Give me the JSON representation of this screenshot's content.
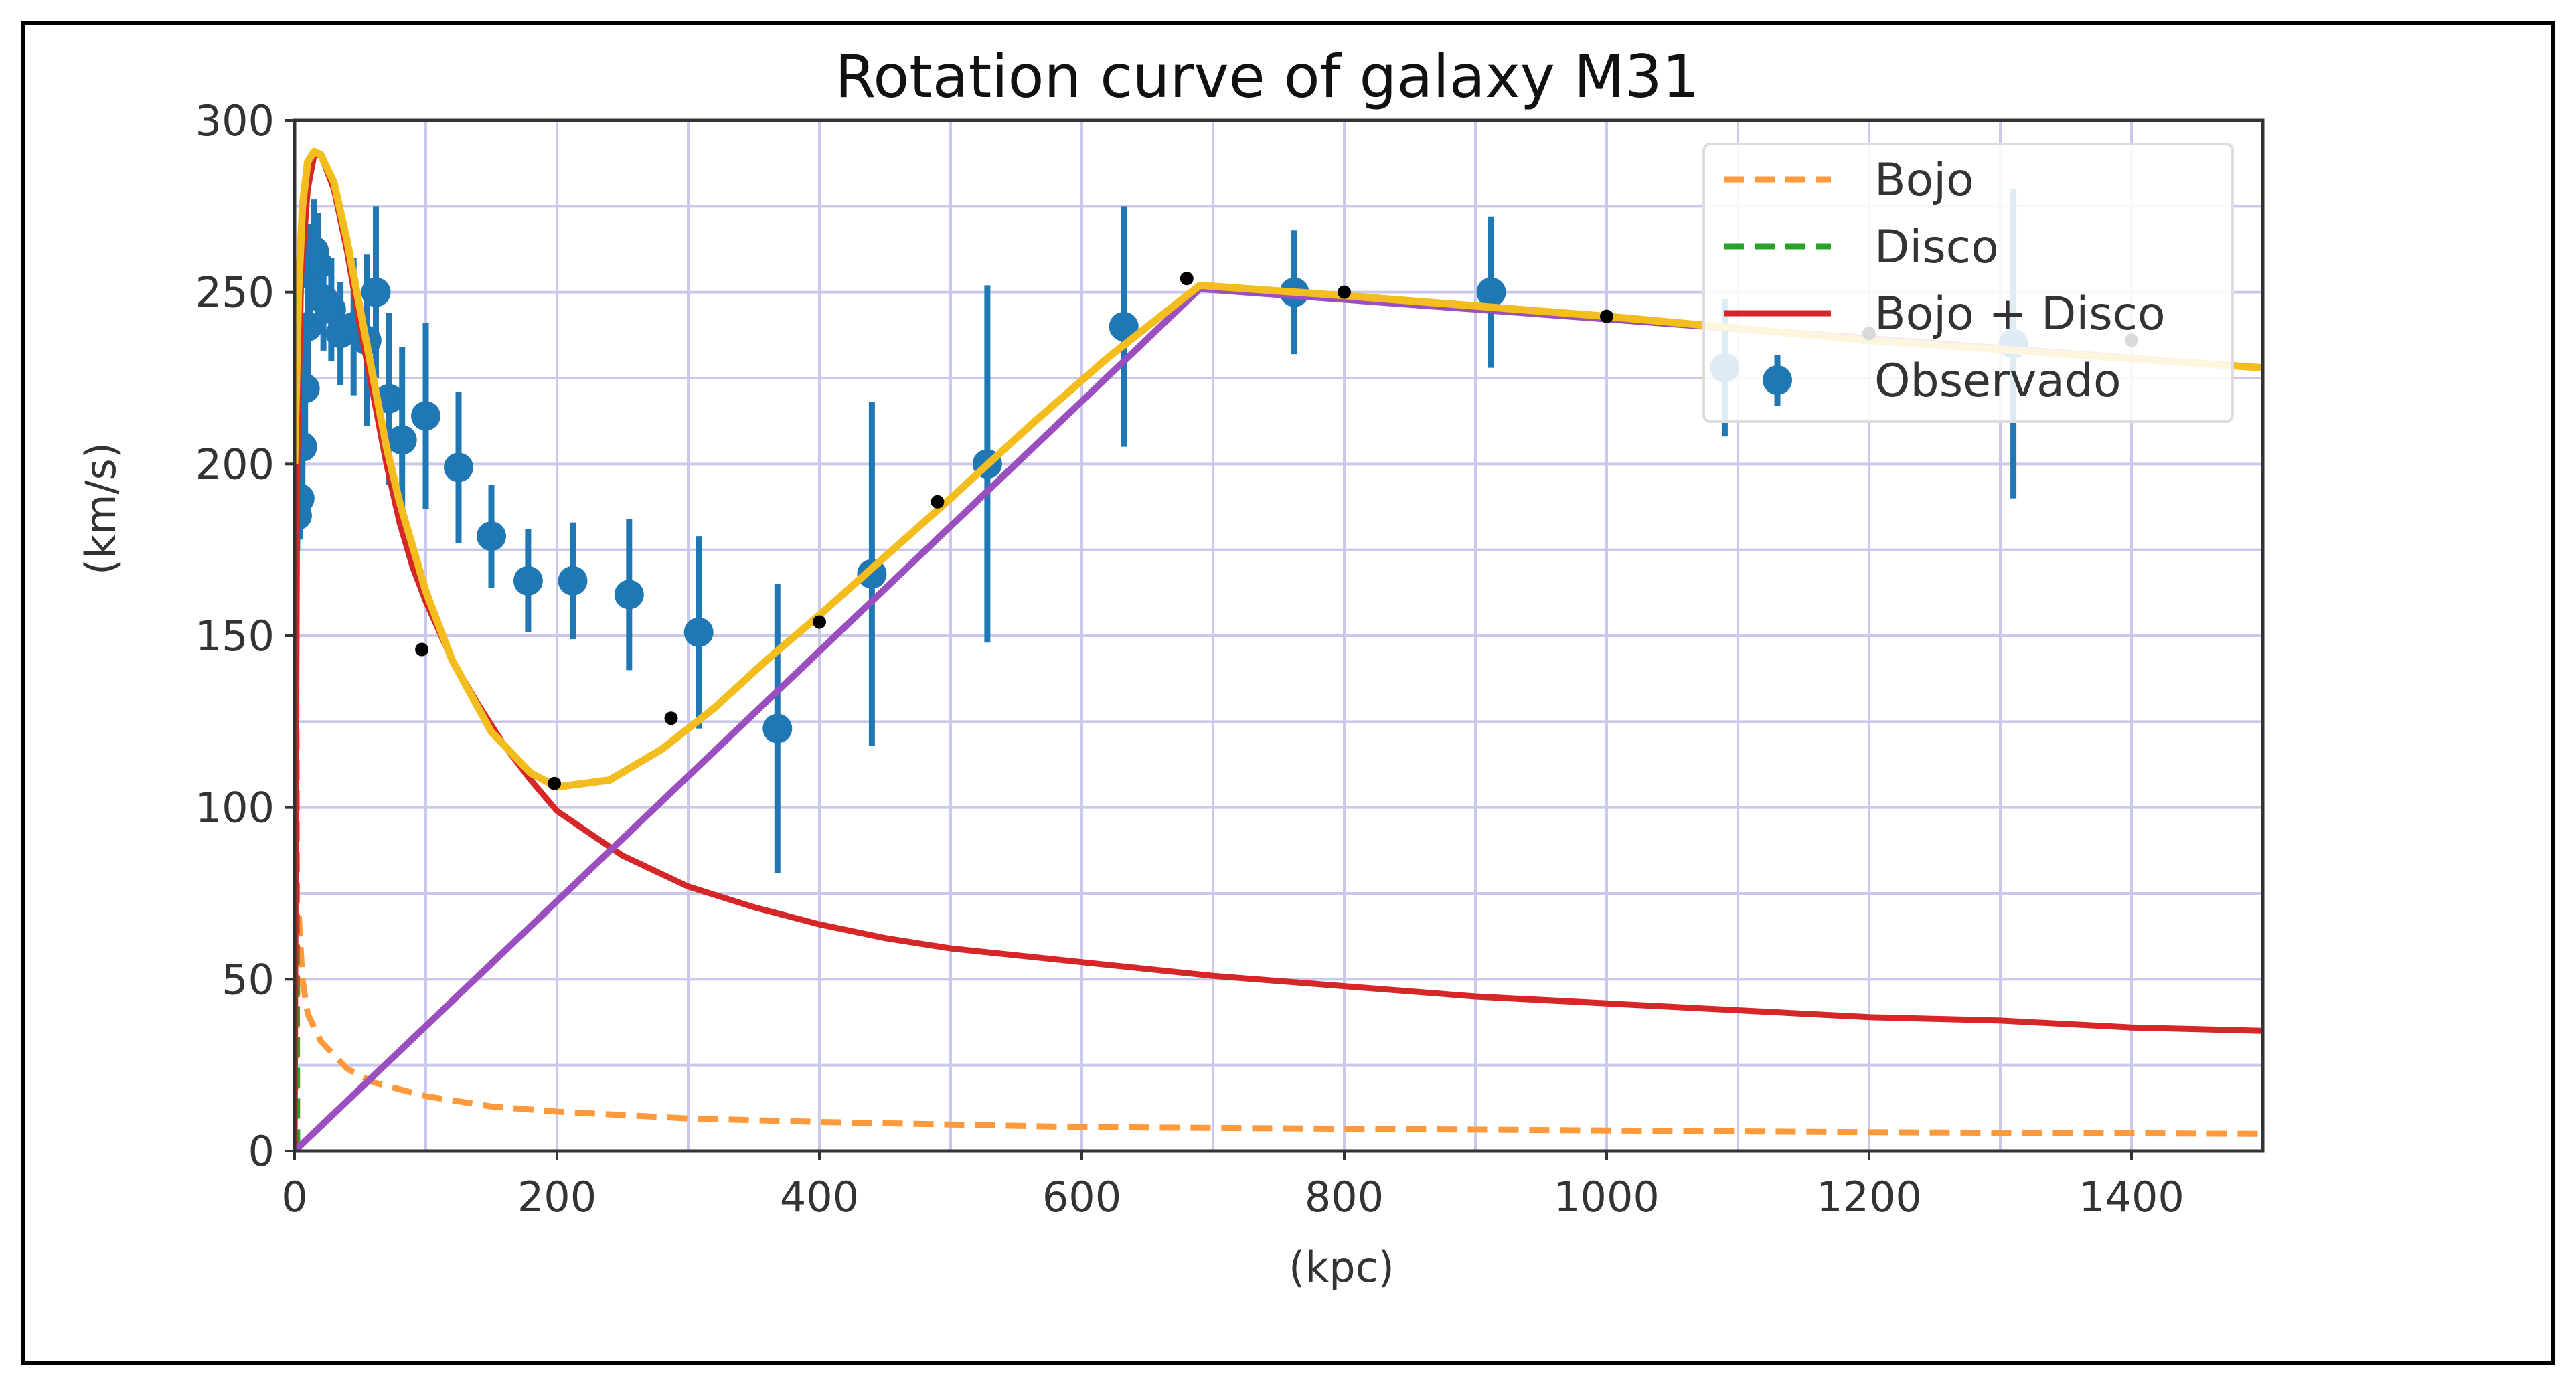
{
  "chart_data": {
    "type": "line",
    "title": "Rotation curve of galaxy M31",
    "xlabel": "(kpc)",
    "ylabel": "(km/s)",
    "xlim": [
      0,
      1500
    ],
    "ylim": [
      0,
      300
    ],
    "xticks": [
      0,
      200,
      400,
      600,
      800,
      1000,
      1200,
      1400
    ],
    "yticks": [
      0,
      50,
      100,
      150,
      200,
      250,
      300
    ],
    "grid": true,
    "legend_position": "top-right",
    "series": [
      {
        "name": "Bojo",
        "style": "dashed",
        "color": "#ff9a3c",
        "x": [
          0,
          3,
          6,
          10,
          20,
          40,
          60,
          100,
          150,
          200,
          300,
          400,
          600,
          800,
          1000,
          1200,
          1500
        ],
        "y": [
          0,
          70,
          50,
          40,
          32,
          24,
          20,
          16,
          13,
          11.5,
          9.5,
          8.5,
          7,
          6.5,
          6,
          5.5,
          5
        ]
      },
      {
        "name": "Disco",
        "style": "dashed",
        "color": "#2ca02c",
        "x": [
          0,
          0.5,
          1,
          1.5,
          2
        ],
        "y": [
          0,
          100,
          160,
          120,
          0
        ]
      },
      {
        "name": "Bojo + Disco",
        "style": "solid",
        "color": "#d62728",
        "x": [
          0,
          2,
          5,
          10,
          15,
          20,
          30,
          40,
          50,
          60,
          70,
          80,
          90,
          100,
          120,
          140,
          160,
          180,
          200,
          250,
          300,
          350,
          400,
          450,
          500,
          600,
          700,
          800,
          900,
          1000,
          1100,
          1200,
          1300,
          1400,
          1500
        ],
        "y": [
          0,
          200,
          255,
          280,
          290,
          290,
          280,
          262,
          240,
          220,
          200,
          183,
          170,
          160,
          143,
          130,
          118,
          108,
          99,
          86,
          77,
          71,
          66,
          62,
          59,
          55,
          51,
          48,
          45,
          43,
          41,
          39,
          38,
          36,
          35
        ]
      },
      {
        "name": "Observado",
        "style": "errorbar",
        "color": "#1f77b4",
        "x": [
          2,
          4,
          6,
          8,
          10,
          12,
          15,
          18,
          22,
          28,
          35,
          45,
          55,
          62,
          72,
          82,
          100,
          125,
          150,
          178,
          212,
          255,
          308,
          368,
          440,
          528,
          632,
          762,
          912,
          1090,
          1310
        ],
        "y": [
          185,
          190,
          205,
          222,
          240,
          255,
          262,
          258,
          248,
          245,
          238,
          240,
          236,
          250,
          219,
          207,
          214,
          199,
          179,
          166,
          166,
          162,
          151,
          123,
          168,
          200,
          240,
          250,
          250,
          228,
          235
        ],
        "yerr": [
          10,
          12,
          15,
          15,
          15,
          15,
          15,
          15,
          15,
          15,
          15,
          20,
          25,
          25,
          25,
          27,
          27,
          22,
          15,
          15,
          17,
          22,
          28,
          42,
          50,
          52,
          35,
          18,
          22,
          20,
          45
        ]
      },
      {
        "name": "",
        "style": "solid",
        "color": "#9b4fbf",
        "x": [
          0,
          690,
          1500
        ],
        "y": [
          0,
          251,
          228
        ]
      },
      {
        "name": "",
        "style": "solid",
        "color": "#f2bd1d",
        "x": [
          0,
          3,
          6,
          10,
          15,
          20,
          30,
          40,
          50,
          60,
          70,
          80,
          90,
          100,
          120,
          150,
          180,
          200,
          240,
          280,
          320,
          360,
          400,
          450,
          500,
          560,
          620,
          690,
          800,
          1000,
          1200,
          1500
        ],
        "y": [
          200,
          250,
          275,
          288,
          291,
          290,
          282,
          265,
          245,
          225,
          205,
          189,
          176,
          163,
          143,
          122,
          110,
          106,
          108,
          117,
          129,
          143,
          156,
          173,
          190,
          211,
          231,
          252,
          249,
          243,
          236,
          228
        ]
      },
      {
        "name": "",
        "style": "markers",
        "color": "#000000",
        "x": [
          97,
          198,
          287,
          400,
          490,
          680,
          800,
          1000,
          1200,
          1400
        ],
        "y": [
          146,
          107,
          126,
          154,
          189,
          254,
          250,
          243,
          238,
          236
        ]
      }
    ]
  }
}
